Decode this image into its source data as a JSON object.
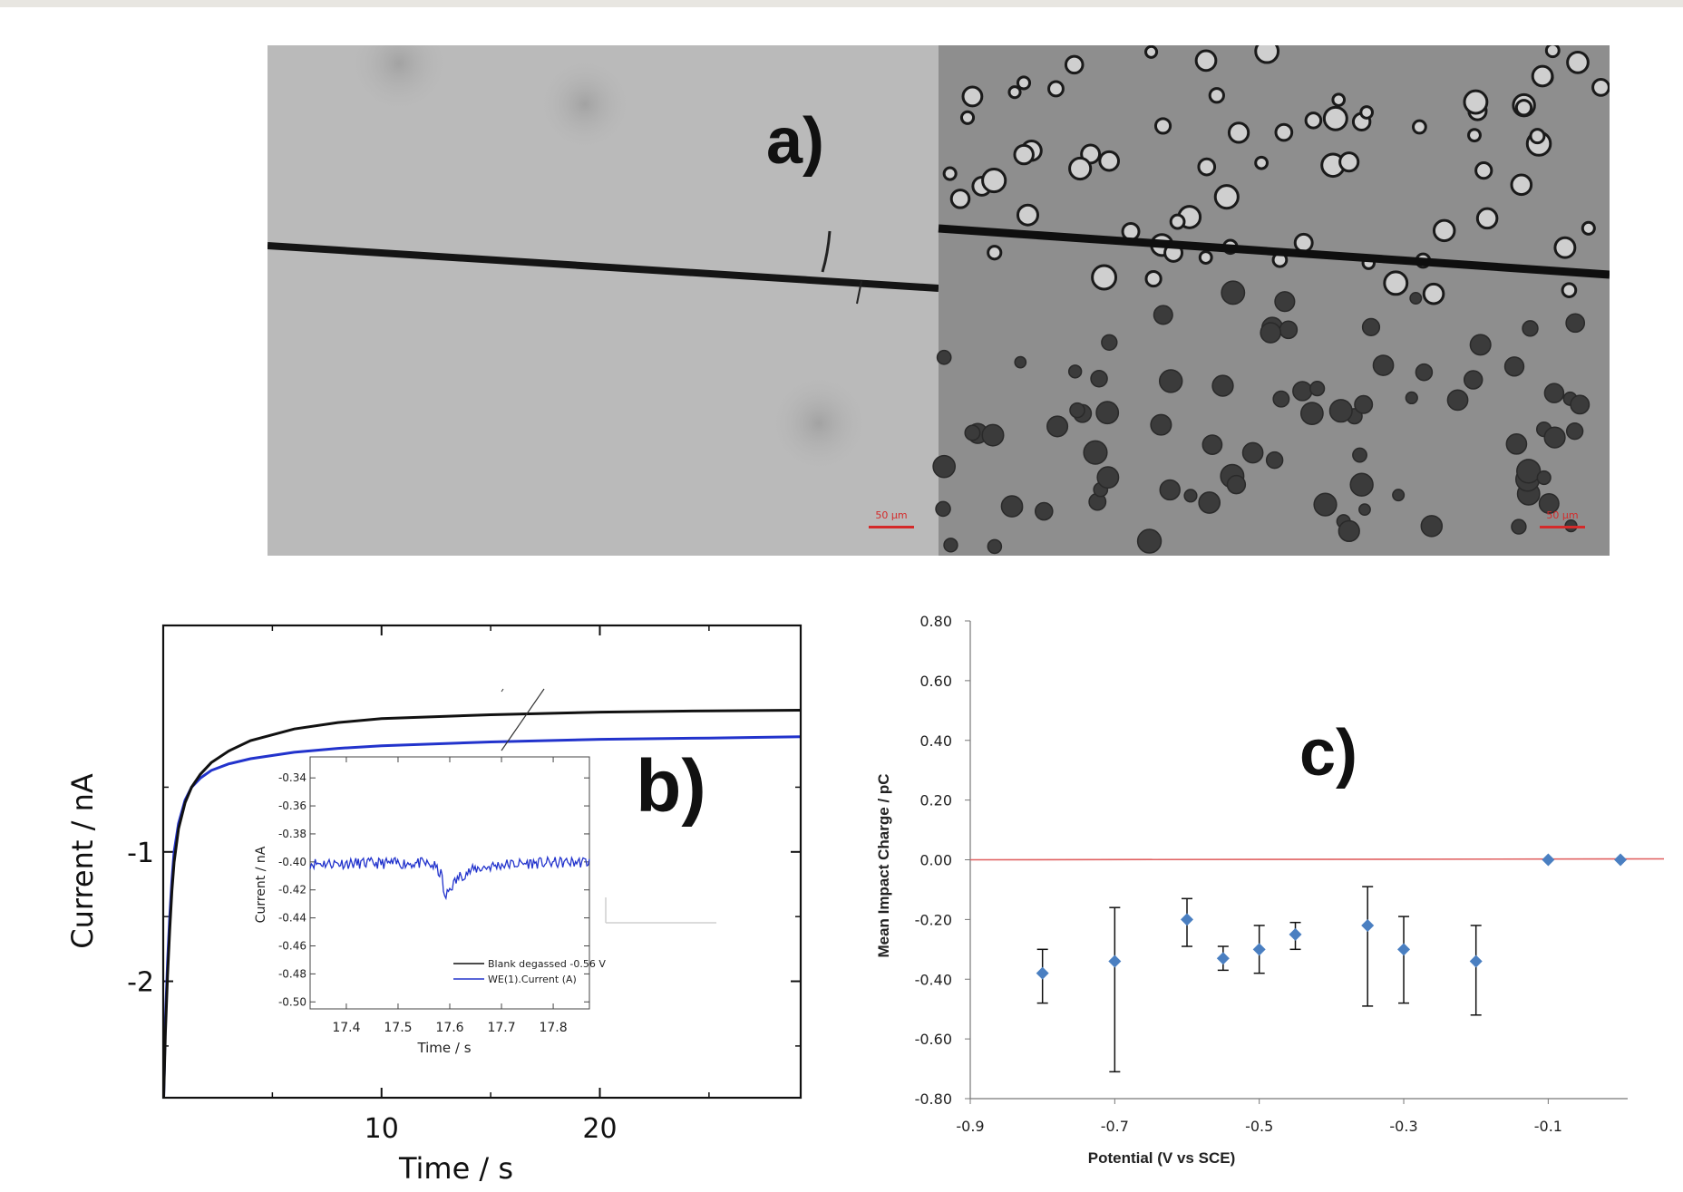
{
  "figure": {
    "panel_labels": {
      "a": "a)",
      "b": "b)",
      "c": "c)"
    },
    "micrograph": {
      "scale_bar_label": "50 µm",
      "scale_bar_color": "#d42a2a"
    }
  },
  "chart_data": [
    {
      "id": "b-main",
      "type": "line",
      "xlabel": "Time / s",
      "ylabel": "Current / nA",
      "xlim": [
        0,
        29.2
      ],
      "ylim": [
        -2.9,
        0.75
      ],
      "xticks": [
        10,
        20
      ],
      "yticks": [
        -1,
        -2
      ],
      "series": [
        {
          "color": "#111111",
          "x": [
            0.02,
            0.1,
            0.2,
            0.3,
            0.4,
            0.5,
            0.7,
            1,
            1.3,
            1.7,
            2.2,
            3,
            4,
            6,
            8,
            10,
            15,
            20,
            25,
            29.2
          ],
          "y": [
            -2.9,
            -2.4,
            -1.95,
            -1.6,
            -1.3,
            -1.08,
            -0.82,
            -0.62,
            -0.5,
            -0.4,
            -0.31,
            -0.22,
            -0.14,
            -0.05,
            0,
            0.03,
            0.06,
            0.08,
            0.09,
            0.095
          ]
        },
        {
          "color": "#2233cc",
          "x": [
            0.02,
            0.1,
            0.2,
            0.3,
            0.4,
            0.5,
            0.7,
            1,
            1.3,
            1.7,
            2.2,
            3,
            4,
            6,
            8,
            10,
            15,
            20,
            25,
            29.2
          ],
          "y": [
            -2.9,
            -2.3,
            -1.85,
            -1.5,
            -1.22,
            -1.0,
            -0.78,
            -0.6,
            -0.5,
            -0.43,
            -0.37,
            -0.32,
            -0.28,
            -0.23,
            -0.2,
            -0.18,
            -0.15,
            -0.13,
            -0.12,
            -0.11
          ]
        }
      ]
    },
    {
      "id": "b-inset",
      "type": "line",
      "xlabel": "Time / s",
      "ylabel": "Current / nA",
      "xlim": [
        17.33,
        17.87
      ],
      "ylim": [
        -0.505,
        -0.325
      ],
      "xticks": [
        17.4,
        17.5,
        17.6,
        17.7,
        17.8
      ],
      "xtick_labels": [
        "17.4",
        "17.5",
        "17.6",
        "17.7",
        "17.8"
      ],
      "yticks": [
        -0.34,
        -0.36,
        -0.38,
        -0.4,
        -0.42,
        -0.44,
        -0.46,
        -0.48,
        -0.5
      ],
      "ytick_labels": [
        "-0.34",
        "-0.36",
        "-0.38",
        "-0.40",
        "-0.42",
        "-0.44",
        "-0.46",
        "-0.48",
        "-0.50"
      ],
      "legend": [
        "Blank degassed -0.56 V",
        "WE(1).Current (A)"
      ],
      "series": [
        {
          "name": "WE(1).Current (A)",
          "color": "#2233cc",
          "x": [
            17.33,
            17.55,
            17.57,
            17.585,
            17.59,
            17.6,
            17.62,
            17.65,
            17.7,
            17.75,
            17.87
          ],
          "y": [
            -0.401,
            -0.401,
            -0.403,
            -0.41,
            -0.427,
            -0.419,
            -0.41,
            -0.405,
            -0.402,
            -0.401,
            -0.4
          ]
        }
      ]
    },
    {
      "id": "c",
      "type": "scatter",
      "xlabel": "Potential (V vs SCE)",
      "ylabel": "Mean Impact Charge / pC",
      "xlim": [
        -0.9,
        0.01
      ],
      "ylim": [
        -0.8,
        0.8
      ],
      "xticks": [
        -0.9,
        -0.7,
        -0.5,
        -0.3,
        -0.1
      ],
      "xtick_labels": [
        "-0.9",
        "-0.7",
        "-0.5",
        "-0.3",
        "-0.1"
      ],
      "yticks": [
        0.8,
        0.6,
        0.4,
        0.2,
        0.0,
        -0.2,
        -0.4,
        -0.6,
        -0.8
      ],
      "ytick_labels": [
        "0.80",
        "0.60",
        "0.40",
        "0.20",
        "0.00",
        "-0.20",
        "-0.40",
        "-0.60",
        "-0.80"
      ],
      "reference_line": {
        "y": 0,
        "color": "#e06060"
      },
      "marker_color": "#4a7fc1",
      "points": [
        {
          "x": -0.8,
          "y": -0.38,
          "err_low": -0.48,
          "err_high": -0.3
        },
        {
          "x": -0.7,
          "y": -0.34,
          "err_low": -0.71,
          "err_high": -0.16
        },
        {
          "x": -0.6,
          "y": -0.2,
          "err_low": -0.29,
          "err_high": -0.13
        },
        {
          "x": -0.55,
          "y": -0.33,
          "err_low": -0.37,
          "err_high": -0.29
        },
        {
          "x": -0.5,
          "y": -0.3,
          "err_low": -0.38,
          "err_high": -0.22
        },
        {
          "x": -0.45,
          "y": -0.25,
          "err_low": -0.3,
          "err_high": -0.21
        },
        {
          "x": -0.35,
          "y": -0.22,
          "err_low": -0.49,
          "err_high": -0.09
        },
        {
          "x": -0.3,
          "y": -0.3,
          "err_low": -0.48,
          "err_high": -0.19
        },
        {
          "x": -0.2,
          "y": -0.34,
          "err_low": -0.52,
          "err_high": -0.22
        },
        {
          "x": -0.1,
          "y": 0.0,
          "err_low": 0.0,
          "err_high": 0.0
        },
        {
          "x": 0.0,
          "y": 0.0,
          "err_low": 0.0,
          "err_high": 0.0
        }
      ]
    }
  ]
}
